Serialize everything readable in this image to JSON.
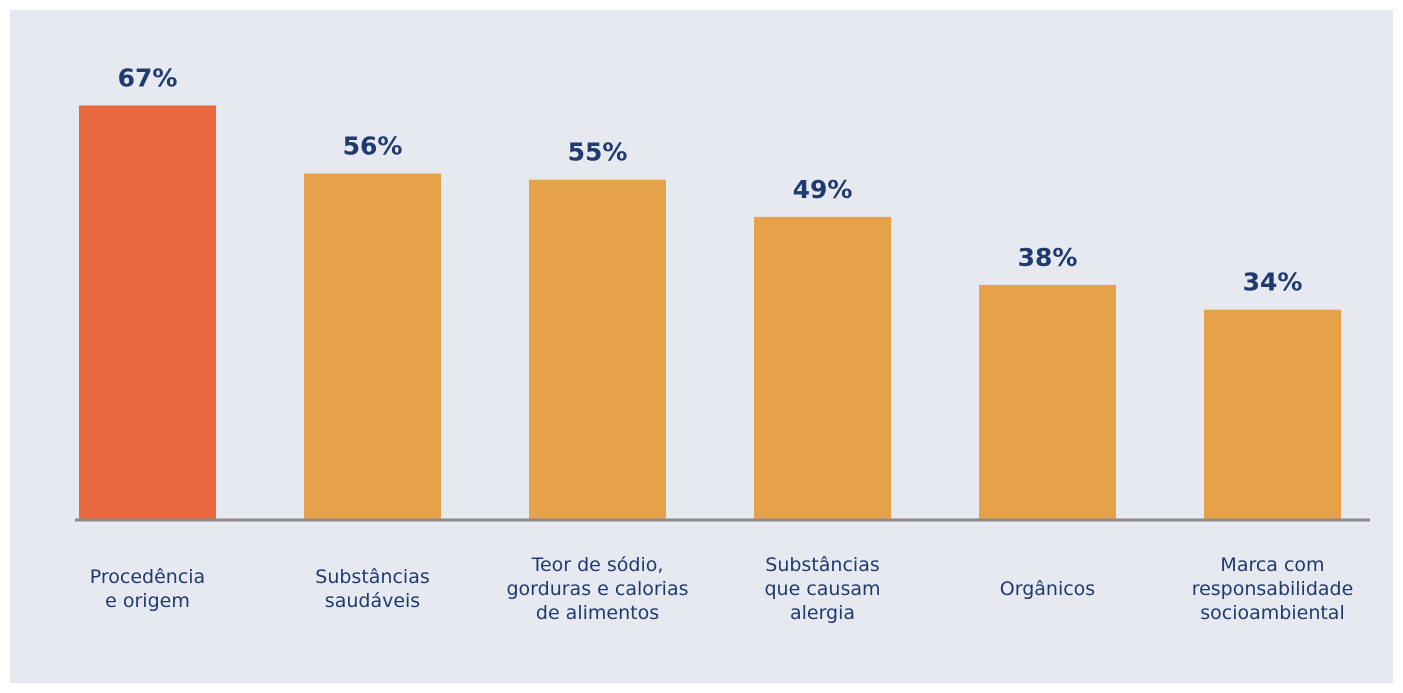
{
  "chart_data": {
    "type": "bar",
    "categories": [
      "Procedência\ne origem",
      "Substâncias\nsaudáveis",
      "Teor de sódio,\ngorduras e calorias\nde alimentos",
      "Substâncias\nque causam\nalergia",
      "Orgânicos",
      "Marca com\nresponsabilidade\nsocioambiental"
    ],
    "values": [
      67,
      56,
      55,
      49,
      38,
      34
    ],
    "value_labels": [
      "67%",
      "56%",
      "55%",
      "49%",
      "38%",
      "34%"
    ],
    "colors": [
      "#e8673c",
      "#e6a24a",
      "#e6a24a",
      "#e6a24a",
      "#e6a24a",
      "#e6a24a"
    ],
    "ylim": [
      0,
      75
    ]
  }
}
